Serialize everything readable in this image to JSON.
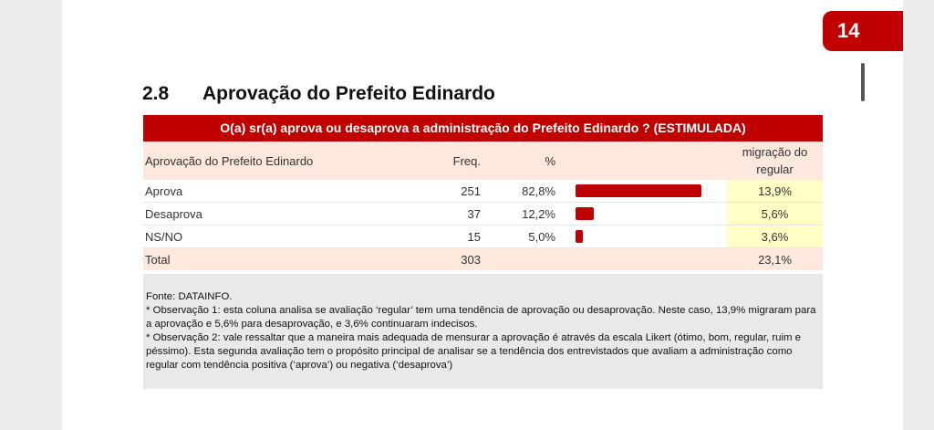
{
  "page_number": "14",
  "section": {
    "number": "2.8",
    "title": "Aprovação do Prefeito Edinardo"
  },
  "table": {
    "question": "O(a) sr(a) aprova ou desaprova a administração do Prefeito Edinardo ? (ESTIMULADA)",
    "headers": {
      "label": "Aprovação do Prefeito Edinardo",
      "freq": "Freq.",
      "pct": "%",
      "migration": "migração do regular"
    },
    "rows": [
      {
        "label": "Aprova",
        "freq": "251",
        "pct": "82,8%",
        "share": 82.8,
        "migration": "13,9%"
      },
      {
        "label": "Desaprova",
        "freq": "37",
        "pct": "12,2%",
        "share": 12.2,
        "migration": "5,6%"
      },
      {
        "label": "NS/NO",
        "freq": "15",
        "pct": "5,0%",
        "share": 5.0,
        "migration": "3,6%"
      }
    ],
    "total": {
      "label": "Total",
      "freq": "303",
      "migration": "23,1%"
    },
    "bar_color": "#c00000"
  },
  "notes": {
    "source": "Fonte: DATAINFO.",
    "obs1": "* Observação 1: esta coluna analisa se avaliação ‘regular’ tem uma tendência de aprovação ou desaprovação. Neste caso, 13,9% migraram para a aprovação e 5,6% para desaprovação, e 3,6% continuaram indecisos.",
    "obs2": "* Observação 2: vale ressaltar que a maneira mais adequada de mensurar a aprovação é através da escala Likert (ótimo, bom, regular, ruim e péssimo). Esta segunda avaliação tem o propósito principal de analisar se a tendência dos entrevistados que avaliam a administração como regular com tendência positiva (‘aprova’) ou negativa (‘desaprova’)"
  }
}
